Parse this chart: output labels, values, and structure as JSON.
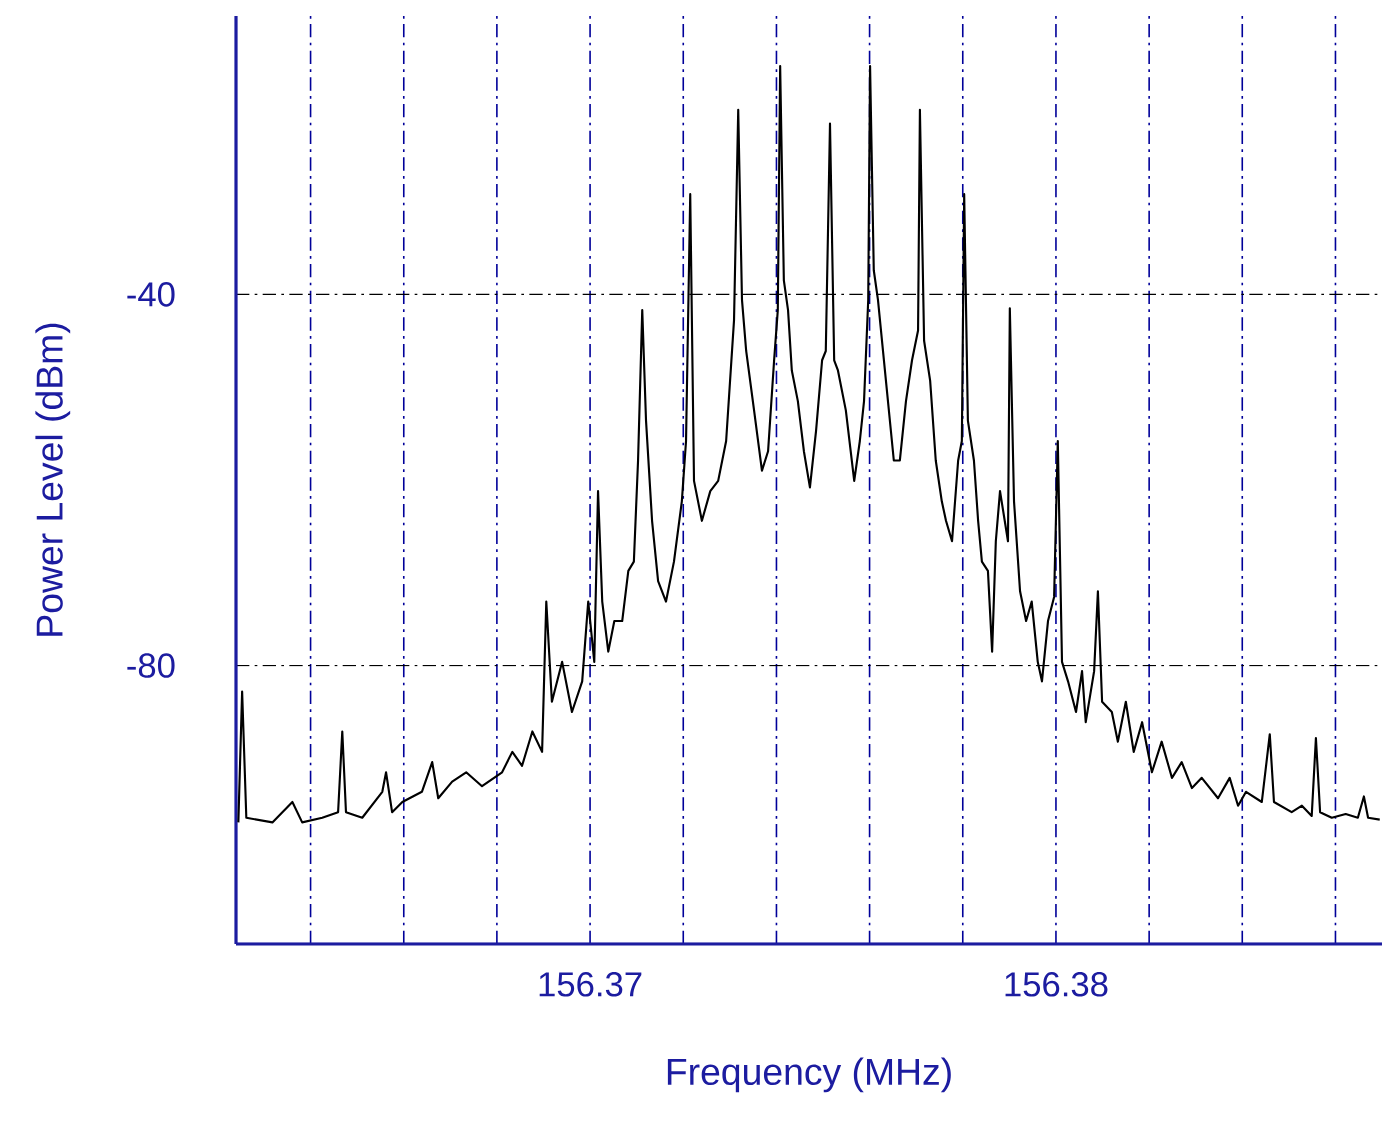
{
  "chart_data": {
    "type": "line",
    "xlabel": "Frequency (MHz)",
    "ylabel": "Power Level (dBm)",
    "xlim": [
      156.3624,
      156.387
    ],
    "ylim": [
      -110,
      -10
    ],
    "xticks": [
      {
        "value": 156.364,
        "label": null
      },
      {
        "value": 156.366,
        "label": null
      },
      {
        "value": 156.368,
        "label": null
      },
      {
        "value": 156.37,
        "label": "156.37"
      },
      {
        "value": 156.372,
        "label": null
      },
      {
        "value": 156.374,
        "label": null
      },
      {
        "value": 156.376,
        "label": null
      },
      {
        "value": 156.378,
        "label": null
      },
      {
        "value": 156.38,
        "label": "156.38"
      },
      {
        "value": 156.382,
        "label": null
      },
      {
        "value": 156.384,
        "label": null
      },
      {
        "value": 156.386,
        "label": null
      }
    ],
    "yticks": [
      -80,
      -40
    ],
    "grid": true,
    "color": "#000000",
    "x": [
      156.36245,
      156.36253,
      156.36262,
      156.36318,
      156.36361,
      156.36382,
      156.36425,
      156.36459,
      156.36468,
      156.36476,
      156.36511,
      156.36554,
      156.36562,
      156.36575,
      156.36597,
      156.36639,
      156.36661,
      156.36674,
      156.36704,
      156.36734,
      156.36768,
      156.36811,
      156.36833,
      156.36854,
      156.36876,
      156.36897,
      156.36906,
      156.36918,
      156.3694,
      156.36961,
      156.36983,
      156.36996,
      156.37009,
      156.37017,
      156.37026,
      156.37039,
      156.37052,
      156.37069,
      156.37082,
      156.37094,
      156.37103,
      156.37112,
      156.3712,
      156.37133,
      156.37146,
      156.37163,
      156.3718,
      156.37197,
      156.37206,
      156.37215,
      156.37223,
      156.3724,
      156.37258,
      156.37275,
      156.37292,
      156.37309,
      156.37318,
      156.37326,
      156.37335,
      156.37352,
      156.37369,
      156.37382,
      156.37395,
      156.37403,
      156.37408,
      156.37416,
      156.37425,
      156.37433,
      156.37446,
      156.37459,
      156.37472,
      156.37485,
      156.37498,
      156.37506,
      156.37515,
      156.37524,
      156.37532,
      156.37549,
      156.37567,
      156.37579,
      156.37588,
      156.37597,
      156.37601,
      156.37609,
      156.37618,
      156.37635,
      156.37652,
      156.37665,
      156.37678,
      156.37691,
      156.37704,
      156.37708,
      156.37717,
      156.3773,
      156.37742,
      156.37755,
      156.37764,
      156.37777,
      156.3779,
      156.37798,
      156.37803,
      156.37811,
      156.37824,
      156.37833,
      156.37841,
      156.37854,
      156.37863,
      156.37871,
      156.3788,
      156.37897,
      156.37901,
      156.3791,
      156.37923,
      156.37936,
      156.37948,
      156.37961,
      156.3797,
      156.37983,
      156.37996,
      156.38004,
      156.38013,
      156.38026,
      156.38043,
      156.38056,
      156.38064,
      156.38082,
      156.3809,
      156.38099,
      156.3812,
      156.38133,
      156.3815,
      156.38167,
      156.38185,
      156.38206,
      156.38227,
      156.38249,
      156.3827,
      156.38292,
      156.38313,
      156.38348,
      156.38373,
      156.38391,
      156.38408,
      156.38442,
      156.38459,
      156.38468,
      156.38506,
      156.38528,
      156.38549,
      156.38558,
      156.38567,
      156.38592,
      156.38622,
      156.38648,
      156.38661,
      156.3867,
      156.38695
    ],
    "values": [
      -96.9,
      -82.8,
      -96.4,
      -96.9,
      -94.7,
      -96.9,
      -96.4,
      -95.8,
      -87.1,
      -95.8,
      -96.4,
      -93.6,
      -91.5,
      -95.8,
      -94.7,
      -93.6,
      -90.4,
      -94.3,
      -92.5,
      -91.5,
      -93.0,
      -91.5,
      -89.3,
      -90.8,
      -87.1,
      -89.3,
      -73.1,
      -83.9,
      -79.6,
      -85.0,
      -81.7,
      -73.1,
      -79.6,
      -61.2,
      -73.1,
      -78.5,
      -75.2,
      -75.2,
      -69.8,
      -68.8,
      -57.9,
      -41.7,
      -53.6,
      -64.4,
      -70.9,
      -73.1,
      -68.8,
      -62.3,
      -55.8,
      -29.2,
      -60.1,
      -64.4,
      -61.2,
      -60.1,
      -55.8,
      -42.8,
      -20.1,
      -40.6,
      -46.1,
      -52.5,
      -59.0,
      -56.9,
      -47.1,
      -41.7,
      -15.4,
      -38.5,
      -41.7,
      -48.2,
      -51.5,
      -56.9,
      -60.8,
      -54.7,
      -47.1,
      -46.1,
      -21.6,
      -47.1,
      -48.2,
      -52.5,
      -60.1,
      -55.8,
      -51.5,
      -40.6,
      -15.4,
      -37.4,
      -40.6,
      -49.3,
      -57.9,
      -57.9,
      -51.5,
      -47.1,
      -43.9,
      -20.1,
      -45.0,
      -49.3,
      -57.9,
      -62.3,
      -64.4,
      -66.6,
      -57.9,
      -55.8,
      -29.2,
      -53.6,
      -57.9,
      -64.4,
      -68.8,
      -69.8,
      -78.5,
      -66.6,
      -61.2,
      -66.6,
      -41.5,
      -62.3,
      -72.0,
      -75.2,
      -73.1,
      -79.6,
      -81.7,
      -75.2,
      -72.6,
      -55.8,
      -79.6,
      -81.7,
      -85.0,
      -80.6,
      -86.1,
      -80.6,
      -72.0,
      -83.9,
      -85.0,
      -88.2,
      -83.9,
      -89.3,
      -86.1,
      -91.5,
      -88.2,
      -92.1,
      -90.4,
      -93.2,
      -92.1,
      -94.3,
      -92.1,
      -95.1,
      -93.6,
      -94.7,
      -87.4,
      -94.7,
      -95.8,
      -95.1,
      -96.2,
      -87.8,
      -95.8,
      -96.4,
      -96.0,
      -96.4,
      -94.1,
      -96.4,
      -96.6
    ]
  }
}
